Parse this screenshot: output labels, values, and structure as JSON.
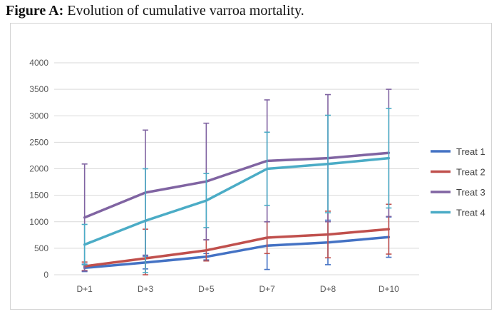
{
  "figure": {
    "label": "Figure A:",
    "caption": "Evolution of cumulative varroa mortality."
  },
  "chart_data": {
    "type": "line",
    "title": "Evolution of cumulative varroa mortality.",
    "xlabel": "",
    "ylabel": "",
    "categories": [
      "D+1",
      "D+3",
      "D+5",
      "D+7",
      "D+8",
      "D+10"
    ],
    "ylim": [
      0,
      4000
    ],
    "yticks": [
      0,
      500,
      1000,
      1500,
      2000,
      2500,
      3000,
      3500,
      4000
    ],
    "grid": true,
    "legend": "right",
    "series": [
      {
        "name": "Treat 1",
        "color": "#4472C4",
        "values": [
          130,
          230,
          340,
          550,
          610,
          710
        ],
        "error": [
          70,
          120,
          60,
          450,
          420,
          380
        ]
      },
      {
        "name": "Treat 2",
        "color": "#C0504D",
        "values": [
          160,
          310,
          460,
          700,
          760,
          860
        ],
        "error": [
          80,
          550,
          200,
          300,
          440,
          470
        ]
      },
      {
        "name": "Treat 3",
        "color": "#8064A2",
        "values": [
          1080,
          1550,
          1760,
          2150,
          2200,
          2300
        ],
        "error": [
          1010,
          1180,
          1100,
          1150,
          1200,
          1200
        ]
      },
      {
        "name": "Treat 4",
        "color": "#4BACC6",
        "values": [
          570,
          1020,
          1400,
          2000,
          2090,
          2200
        ],
        "error": [
          380,
          980,
          510,
          690,
          920,
          940
        ]
      }
    ]
  }
}
